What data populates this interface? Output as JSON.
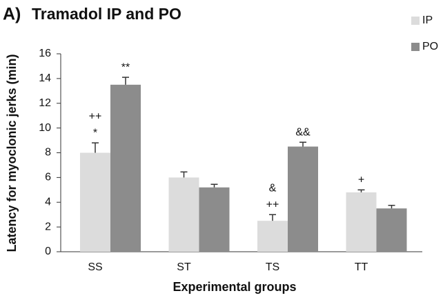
{
  "chart_data": {
    "type": "bar",
    "panel_label": "A)",
    "title": "Tramadol IP and PO",
    "x_label": "Experimental groups",
    "y_label": "Latency for myoclonic jerks (min)",
    "categories": [
      "SS",
      "ST",
      "TS",
      "TT"
    ],
    "series": [
      {
        "name": "IP",
        "color": "#dcdcdc",
        "values": [
          8,
          6,
          2.5,
          4.8
        ],
        "errors": [
          0.8,
          0.45,
          0.5,
          0.2
        ]
      },
      {
        "name": "PO",
        "color": "#8c8c8c",
        "values": [
          13.5,
          5.2,
          8.5,
          3.5
        ],
        "errors": [
          0.6,
          0.25,
          0.35,
          0.25
        ]
      }
    ],
    "annotations": [
      {
        "category": 0,
        "series": 0,
        "labels": [
          "*",
          "++"
        ]
      },
      {
        "category": 0,
        "series": 1,
        "labels": [
          "**"
        ]
      },
      {
        "category": 2,
        "series": 0,
        "labels": [
          "++",
          "&"
        ]
      },
      {
        "category": 2,
        "series": 1,
        "labels": [
          "&&"
        ]
      },
      {
        "category": 3,
        "series": 0,
        "labels": [
          "+"
        ]
      }
    ],
    "ylim": [
      0,
      16
    ],
    "yticks": [
      0,
      2,
      4,
      6,
      8,
      10,
      12,
      14,
      16
    ],
    "legend": "top-right"
  }
}
